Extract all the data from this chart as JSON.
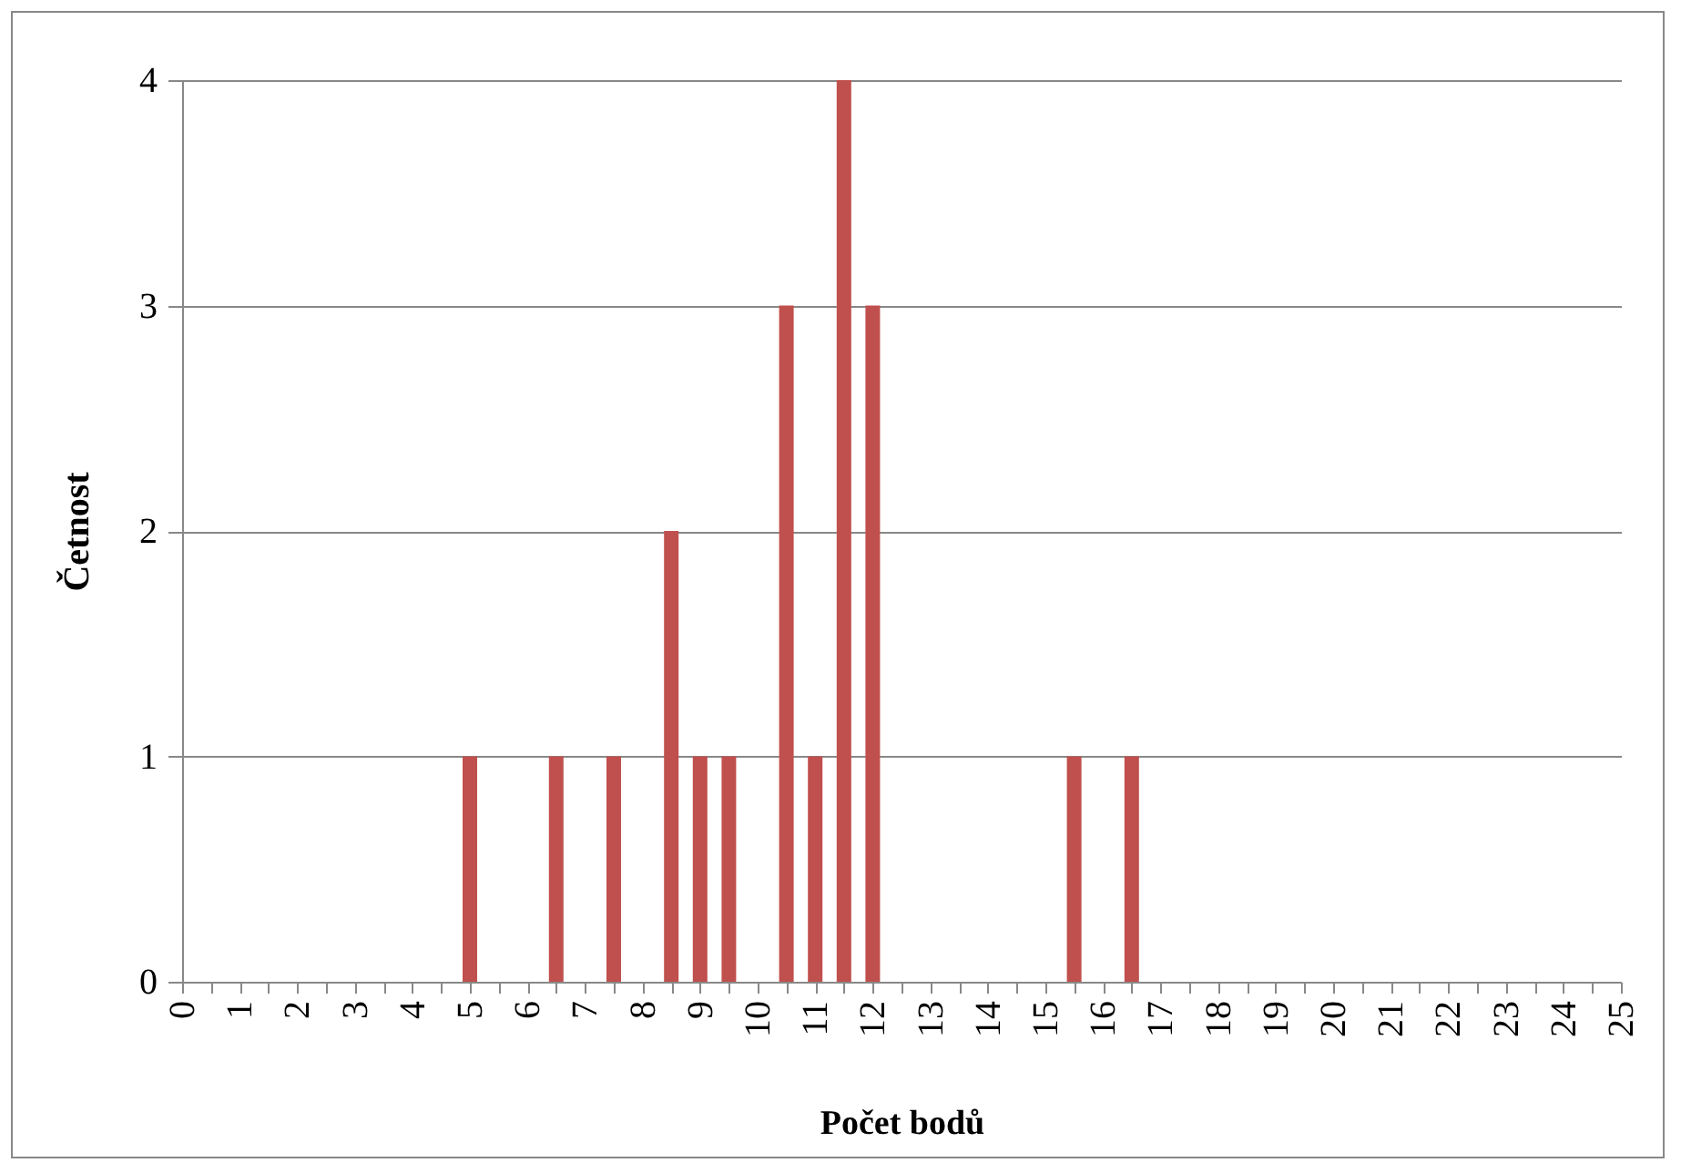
{
  "chart_data": {
    "type": "bar",
    "xlabel": "Počet bodů",
    "ylabel": "Četnost",
    "x": [
      5,
      6.5,
      7.5,
      8.5,
      9,
      9.5,
      10.5,
      11,
      11.5,
      12,
      15.5,
      16.5
    ],
    "values": [
      1,
      1,
      1,
      2,
      1,
      1,
      3,
      1,
      4,
      3,
      1,
      1
    ],
    "color": "#c0504d",
    "xlim": [
      0,
      25
    ],
    "xticks": [
      0,
      {
        "value": 0.5,
        "label": null
      },
      1,
      {
        "value": 1.5,
        "label": null
      },
      2,
      {
        "value": 2.5,
        "label": null
      },
      3,
      {
        "value": 3.5,
        "label": null
      },
      4,
      {
        "value": 4.5,
        "label": null
      },
      5,
      {
        "value": 5.5,
        "label": null
      },
      6,
      {
        "value": 6.5,
        "label": null
      },
      7,
      {
        "value": 7.5,
        "label": null
      },
      8,
      {
        "value": 8.5,
        "label": null
      },
      9,
      {
        "value": 9.5,
        "label": null
      },
      10,
      {
        "value": 10.5,
        "label": null
      },
      11,
      {
        "value": 11.5,
        "label": null
      },
      12,
      {
        "value": 12.5,
        "label": null
      },
      13,
      {
        "value": 13.5,
        "label": null
      },
      14,
      {
        "value": 14.5,
        "label": null
      },
      15,
      {
        "value": 15.5,
        "label": null
      },
      16,
      {
        "value": 16.5,
        "label": null
      },
      17,
      {
        "value": 17.5,
        "label": null
      },
      18,
      {
        "value": 18.5,
        "label": null
      },
      19,
      {
        "value": 19.5,
        "label": null
      },
      20,
      {
        "value": 20.5,
        "label": null
      },
      21,
      {
        "value": 21.5,
        "label": null
      },
      22,
      {
        "value": 22.5,
        "label": null
      },
      23,
      {
        "value": 23.5,
        "label": null
      },
      24,
      {
        "value": 24.5,
        "label": null
      },
      25
    ],
    "ylim": [
      0,
      4
    ],
    "yticks": [
      0,
      1,
      2,
      3,
      4
    ],
    "grid": "y"
  }
}
